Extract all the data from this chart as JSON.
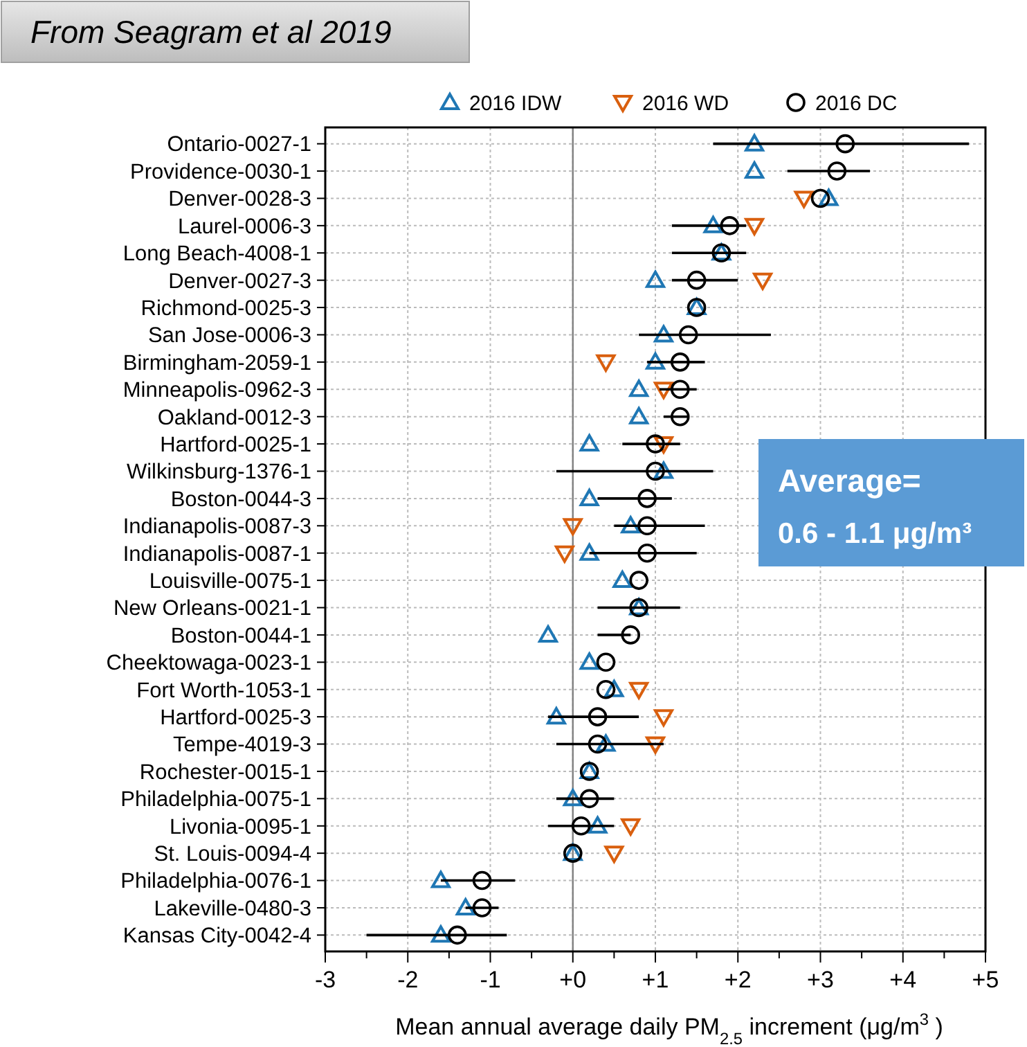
{
  "chart_data": {
    "type": "scatter",
    "orientation": "horizontal",
    "title": "From Seagram et al 2019",
    "xlabel": "Mean annual average daily PM$_{2.5}$ increment (μg/m$^{3}$)",
    "categories": [
      "Ontario-0027-1",
      "Providence-0030-1",
      "Denver-0028-3",
      "Laurel-0006-3",
      "Long Beach-4008-1",
      "Denver-0027-3",
      "Richmond-0025-3",
      "San Jose-0006-3",
      "Birmingham-2059-1",
      "Minneapolis-0962-3",
      "Oakland-0012-3",
      "Hartford-0025-1",
      "Wilkinsburg-1376-1",
      "Boston-0044-3",
      "Indianapolis-0087-3",
      "Indianapolis-0087-1",
      "Louisville-0075-1",
      "New Orleans-0021-1",
      "Boston-0044-1",
      "Cheektowaga-0023-1",
      "Fort Worth-1053-1",
      "Hartford-0025-3",
      "Tempe-4019-3",
      "Rochester-0015-1",
      "Philadelphia-0075-1",
      "Livonia-0095-1",
      "St. Louis-0094-4",
      "Philadelphia-0076-1",
      "Lakeville-0480-3",
      "Kansas City-0042-4"
    ],
    "series": [
      {
        "name": "2016 IDW",
        "color": "#1f77b4",
        "marker": "triangle",
        "values": [
          2.2,
          2.2,
          3.1,
          1.7,
          1.8,
          1.0,
          1.5,
          1.1,
          1.0,
          0.8,
          0.8,
          0.2,
          1.1,
          0.2,
          0.7,
          0.2,
          0.6,
          0.8,
          -0.3,
          0.2,
          0.5,
          -0.2,
          0.4,
          0.2,
          0.0,
          0.3,
          0.0,
          -1.6,
          -1.3,
          -1.6
        ]
      },
      {
        "name": "2016 WD",
        "color": "#d95f0e",
        "marker": "triangle-down",
        "values": [
          null,
          null,
          2.8,
          2.2,
          null,
          2.3,
          null,
          null,
          0.4,
          1.1,
          null,
          1.1,
          null,
          null,
          0.0,
          -0.1,
          null,
          null,
          null,
          null,
          0.8,
          1.1,
          1.0,
          null,
          null,
          0.7,
          0.5,
          null,
          null,
          null
        ]
      },
      {
        "name": "2016 DC",
        "color": "#000000",
        "marker": "circle",
        "values": [
          3.3,
          3.2,
          3.0,
          1.9,
          1.8,
          1.5,
          1.5,
          1.4,
          1.3,
          1.3,
          1.3,
          1.0,
          1.0,
          0.9,
          0.9,
          0.9,
          0.8,
          0.8,
          0.7,
          0.4,
          0.4,
          0.3,
          0.3,
          0.2,
          0.2,
          0.1,
          0.0,
          -1.1,
          -1.1,
          -1.4
        ],
        "errors": [
          [
            1.7,
            4.8
          ],
          [
            2.6,
            3.6
          ],
          null,
          [
            1.2,
            2.1
          ],
          [
            1.2,
            2.1
          ],
          [
            1.2,
            2.0
          ],
          null,
          [
            0.8,
            2.4
          ],
          [
            0.9,
            1.6
          ],
          [
            1.05,
            1.5
          ],
          [
            1.1,
            1.4
          ],
          [
            0.6,
            1.3
          ],
          [
            -0.2,
            1.7
          ],
          [
            0.3,
            1.2
          ],
          [
            0.5,
            1.6
          ],
          [
            0.2,
            1.5
          ],
          null,
          [
            0.3,
            1.3
          ],
          [
            0.3,
            0.7
          ],
          null,
          null,
          [
            -0.3,
            0.8
          ],
          [
            -0.2,
            1.1
          ],
          null,
          [
            -0.2,
            0.5
          ],
          [
            -0.3,
            0.5
          ],
          null,
          [
            -1.6,
            -0.7
          ],
          [
            -1.3,
            -0.9
          ],
          [
            -2.5,
            -0.8
          ]
        ]
      }
    ],
    "xlim": [
      -3,
      5
    ],
    "xticks": [
      -3,
      {
        "value": -2.5,
        "label": null
      },
      -2,
      {
        "value": -1.5,
        "label": null
      },
      -1,
      {
        "value": -0.5,
        "label": null
      },
      {
        "value": 0,
        "label": "+0"
      },
      {
        "value": 0.5,
        "label": null
      },
      {
        "value": 1,
        "label": "+1"
      },
      {
        "value": 1.5,
        "label": null
      },
      {
        "value": 2,
        "label": "+2"
      },
      {
        "value": 2.5,
        "label": null
      },
      {
        "value": 3,
        "label": "+3"
      },
      {
        "value": 3.5,
        "label": null
      },
      {
        "value": 4,
        "label": "+4"
      },
      {
        "value": 4.5,
        "label": null
      },
      {
        "value": 5,
        "label": "+5"
      }
    ],
    "ref_lines": [
      {
        "axis": "x",
        "value": 0,
        "color": "#808080"
      }
    ],
    "annotations": [
      "Average= 0.6 - 1.1 μg/m³"
    ],
    "grid": true,
    "legend": "top"
  }
}
